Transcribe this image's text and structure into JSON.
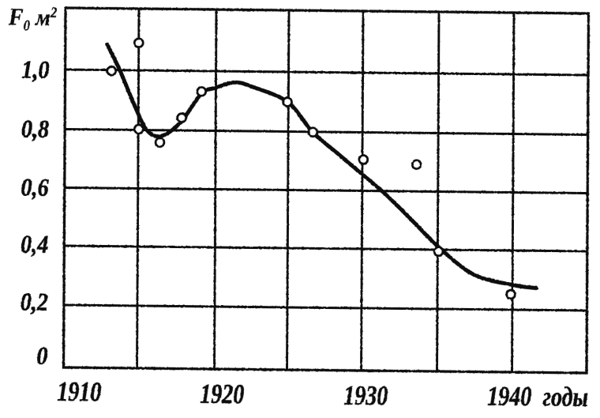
{
  "figure": {
    "background_color": "#ffffff",
    "ink_color": "#0c0c0c"
  },
  "chart_data": {
    "type": "scatter",
    "title": "",
    "xlabel": "годы",
    "ylabel": "F0 м2",
    "ylabel_parts": {
      "main": "F",
      "sub": "0",
      "unit": "м",
      "sup": "2"
    },
    "xlim": [
      1910,
      1945
    ],
    "ylim": [
      0,
      1.207
    ],
    "grid": true,
    "legend": false,
    "x_gridline_years": [
      1915,
      1920,
      1925,
      1930,
      1935,
      1940
    ],
    "y_gridline_values": [
      0.2,
      0.4,
      0.6,
      0.8,
      1.0
    ],
    "x_ticks": [
      {
        "label": "1910",
        "value": 1910
      },
      {
        "label": "1920",
        "value": 1920
      },
      {
        "label": "1930",
        "value": 1930
      },
      {
        "label": "1940",
        "value": 1940
      }
    ],
    "y_ticks": [
      {
        "label": "1,0",
        "value": 1.0
      },
      {
        "label": "0,8",
        "value": 0.8
      },
      {
        "label": "0,6",
        "value": 0.6
      },
      {
        "label": "0,4",
        "value": 0.4
      },
      {
        "label": "0,2",
        "value": 0.2
      },
      {
        "label": "0",
        "value": 0.0
      }
    ],
    "points": [
      [
        1913.15,
        0.997
      ],
      [
        1915.0,
        1.092
      ],
      [
        1915.03,
        0.803
      ],
      [
        1916.4,
        0.758
      ],
      [
        1917.8,
        0.842
      ],
      [
        1919.07,
        0.931
      ],
      [
        1924.93,
        0.899
      ],
      [
        1926.66,
        0.799
      ],
      [
        1930.07,
        0.707
      ],
      [
        1933.58,
        0.692
      ],
      [
        1935.06,
        0.394
      ],
      [
        1939.9,
        0.252
      ]
    ],
    "curve": [
      [
        1912.85,
        1.086
      ],
      [
        1913.7,
        1.002
      ],
      [
        1914.73,
        0.883
      ],
      [
        1915.55,
        0.8
      ],
      [
        1916.47,
        0.78
      ],
      [
        1917.74,
        0.828
      ],
      [
        1919.06,
        0.924
      ],
      [
        1919.97,
        0.944
      ],
      [
        1921.3,
        0.963
      ],
      [
        1922.55,
        0.948
      ],
      [
        1924.95,
        0.899
      ],
      [
        1926.65,
        0.799
      ],
      [
        1928.4,
        0.724
      ],
      [
        1930.15,
        0.65
      ],
      [
        1931.35,
        0.598
      ],
      [
        1933.0,
        0.516
      ],
      [
        1935.05,
        0.41
      ],
      [
        1937.4,
        0.318
      ],
      [
        1940.0,
        0.284
      ],
      [
        1941.6,
        0.274
      ]
    ]
  }
}
